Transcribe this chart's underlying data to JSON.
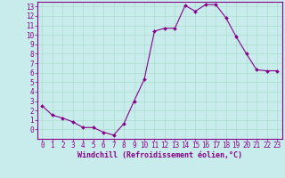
{
  "x": [
    0,
    1,
    2,
    3,
    4,
    5,
    6,
    7,
    8,
    9,
    10,
    11,
    12,
    13,
    14,
    15,
    16,
    17,
    18,
    19,
    20,
    21,
    22,
    23
  ],
  "y": [
    2.5,
    1.5,
    1.2,
    0.8,
    0.2,
    0.2,
    -0.3,
    -0.6,
    0.6,
    3.0,
    5.3,
    10.4,
    10.7,
    10.7,
    13.1,
    12.5,
    13.2,
    13.2,
    11.8,
    9.8,
    8.0,
    6.3,
    6.2,
    6.2
  ],
  "line_color": "#880088",
  "marker": "D",
  "marker_size": 2.0,
  "bg_color": "#c8ecec",
  "grid_color": "#aaddcc",
  "xlabel": "Windchill (Refroidissement éolien,°C)",
  "xlim": [
    -0.5,
    23.5
  ],
  "ylim": [
    -1.0,
    13.5
  ],
  "yticks": [
    0,
    1,
    2,
    3,
    4,
    5,
    6,
    7,
    8,
    9,
    10,
    11,
    12,
    13
  ],
  "xticks": [
    0,
    1,
    2,
    3,
    4,
    5,
    6,
    7,
    8,
    9,
    10,
    11,
    12,
    13,
    14,
    15,
    16,
    17,
    18,
    19,
    20,
    21,
    22,
    23
  ],
  "tick_fontsize": 5.5,
  "xlabel_fontsize": 6.0,
  "xlabel_color": "#880088",
  "tick_color": "#880088",
  "axis_color": "#880088"
}
